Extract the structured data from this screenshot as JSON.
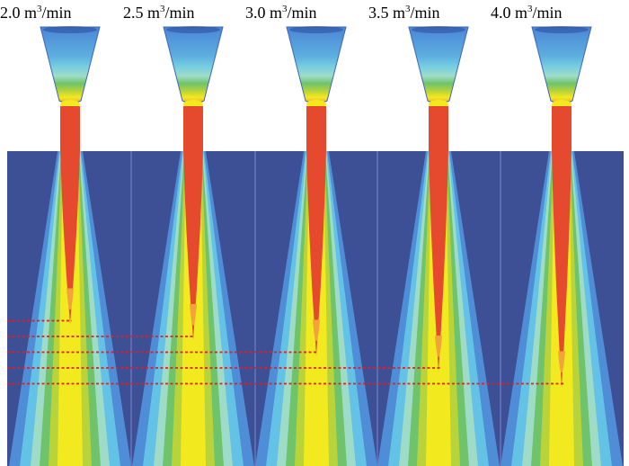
{
  "figure": {
    "panels": [
      {
        "label_prefix": "2.0 m",
        "label_exp": "3",
        "label_suffix": "/min",
        "flow_rate_m3_per_min": 2.0,
        "core_end_fraction": 0.55
      },
      {
        "label_prefix": "2.5 m",
        "label_exp": "3",
        "label_suffix": "/min",
        "flow_rate_m3_per_min": 2.5,
        "core_end_fraction": 0.6
      },
      {
        "label_prefix": "3.0 m",
        "label_exp": "3",
        "label_suffix": "/min",
        "flow_rate_m3_per_min": 3.0,
        "core_end_fraction": 0.65
      },
      {
        "label_prefix": "3.5 m",
        "label_exp": "3",
        "label_suffix": "/min",
        "flow_rate_m3_per_min": 3.5,
        "core_end_fraction": 0.7
      },
      {
        "label_prefix": "4.0 m",
        "label_exp": "3",
        "label_suffix": "/min",
        "flow_rate_m3_per_min": 4.0,
        "core_end_fraction": 0.75
      }
    ],
    "colors": {
      "background_domain": "#3d4f95",
      "panel_divider": "#5a6bb0",
      "contour_levels": [
        "#3d4f95",
        "#4f8ed6",
        "#63c2e6",
        "#9fdcc8",
        "#6fc36a",
        "#b8d43a",
        "#f2ea1e",
        "#f2a33a",
        "#e64a2e"
      ],
      "penetration_marker": "#e02020"
    }
  }
}
